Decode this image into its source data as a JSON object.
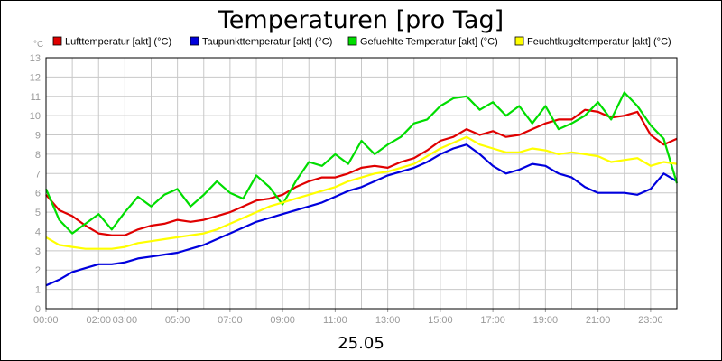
{
  "chart_data": {
    "type": "line",
    "title": "Temperaturen [pro Tag]",
    "ylabel": "°C",
    "xlabel": "25.05",
    "ylim": [
      0,
      13
    ],
    "xlim": [
      0,
      24
    ],
    "grid": true,
    "legend_position": "top",
    "y_ticks": [
      "0",
      "1",
      "2",
      "3",
      "4",
      "5",
      "6",
      "7",
      "8",
      "9",
      "10",
      "11",
      "12",
      "13"
    ],
    "x_ticks": [
      {
        "label": "00:00",
        "hour": 0
      },
      {
        "label": "02:00",
        "hour": 2
      },
      {
        "label": "03:00",
        "hour": 3
      },
      {
        "label": "05:00",
        "hour": 5
      },
      {
        "label": "07:00",
        "hour": 7
      },
      {
        "label": "09:00",
        "hour": 9
      },
      {
        "label": "11:00",
        "hour": 11
      },
      {
        "label": "13:00",
        "hour": 13
      },
      {
        "label": "15:00",
        "hour": 15
      },
      {
        "label": "17:00",
        "hour": 17
      },
      {
        "label": "19:00",
        "hour": 19
      },
      {
        "label": "21:00",
        "hour": 21
      },
      {
        "label": "23:00",
        "hour": 23
      }
    ],
    "series": [
      {
        "name": "Lufttemperatur [akt] (°C)",
        "color": "#e00000",
        "x": [
          0,
          0.5,
          1,
          1.5,
          2,
          2.5,
          3,
          3.5,
          4,
          4.5,
          5,
          5.5,
          6,
          6.5,
          7,
          7.5,
          8,
          8.5,
          9,
          9.5,
          10,
          10.5,
          11,
          11.5,
          12,
          12.5,
          13,
          13.5,
          14,
          14.5,
          15,
          15.5,
          16,
          16.5,
          17,
          17.5,
          18,
          18.5,
          19,
          19.5,
          20,
          20.5,
          21,
          21.5,
          22,
          22.5,
          23,
          23.5,
          24
        ],
        "values": [
          5.9,
          5.1,
          4.8,
          4.3,
          3.9,
          3.8,
          3.8,
          4.1,
          4.3,
          4.4,
          4.6,
          4.5,
          4.6,
          4.8,
          5.0,
          5.3,
          5.6,
          5.7,
          5.9,
          6.3,
          6.6,
          6.8,
          6.8,
          7.0,
          7.3,
          7.4,
          7.3,
          7.6,
          7.8,
          8.2,
          8.7,
          8.9,
          9.3,
          9.0,
          9.2,
          8.9,
          9.0,
          9.3,
          9.6,
          9.8,
          9.8,
          10.3,
          10.2,
          9.9,
          10.0,
          10.2,
          9.0,
          8.5,
          8.8
        ]
      },
      {
        "name": "Taupunkttemperatur [akt] (°C)",
        "color": "#0000dd",
        "x": [
          0,
          0.5,
          1,
          1.5,
          2,
          2.5,
          3,
          3.5,
          4,
          4.5,
          5,
          5.5,
          6,
          6.5,
          7,
          7.5,
          8,
          8.5,
          9,
          9.5,
          10,
          10.5,
          11,
          11.5,
          12,
          12.5,
          13,
          13.5,
          14,
          14.5,
          15,
          15.5,
          16,
          16.5,
          17,
          17.5,
          18,
          18.5,
          19,
          19.5,
          20,
          20.5,
          21,
          21.5,
          22,
          22.5,
          23,
          23.5,
          24
        ],
        "values": [
          1.2,
          1.5,
          1.9,
          2.1,
          2.3,
          2.3,
          2.4,
          2.6,
          2.7,
          2.8,
          2.9,
          3.1,
          3.3,
          3.6,
          3.9,
          4.2,
          4.5,
          4.7,
          4.9,
          5.1,
          5.3,
          5.5,
          5.8,
          6.1,
          6.3,
          6.6,
          6.9,
          7.1,
          7.3,
          7.6,
          8.0,
          8.3,
          8.5,
          8.0,
          7.4,
          7.0,
          7.2,
          7.5,
          7.4,
          7.0,
          6.8,
          6.3,
          6.0,
          6.0,
          6.0,
          5.9,
          6.2,
          7.0,
          6.6
        ]
      },
      {
        "name": "Gefuehlte Temperatur [akt] (°C)",
        "color": "#00dd00",
        "x": [
          0,
          0.5,
          1,
          1.5,
          2,
          2.5,
          3,
          3.5,
          4,
          4.5,
          5,
          5.5,
          6,
          6.5,
          7,
          7.5,
          8,
          8.5,
          9,
          9.5,
          10,
          10.5,
          11,
          11.5,
          12,
          12.5,
          13,
          13.5,
          14,
          14.5,
          15,
          15.5,
          16,
          16.5,
          17,
          17.5,
          18,
          18.5,
          19,
          19.5,
          20,
          20.5,
          21,
          21.5,
          22,
          22.5,
          23,
          23.5,
          24
        ],
        "values": [
          6.2,
          4.6,
          3.9,
          4.4,
          4.9,
          4.1,
          5.0,
          5.8,
          5.3,
          5.9,
          6.2,
          5.3,
          5.9,
          6.6,
          6.0,
          5.7,
          6.9,
          6.3,
          5.4,
          6.6,
          7.6,
          7.4,
          8.0,
          7.5,
          8.7,
          8.0,
          8.5,
          8.9,
          9.6,
          9.8,
          10.5,
          10.9,
          11.0,
          10.3,
          10.7,
          10.0,
          10.5,
          9.6,
          10.5,
          9.3,
          9.6,
          10.0,
          10.7,
          9.8,
          11.2,
          10.5,
          9.5,
          8.8,
          6.5
        ]
      },
      {
        "name": "Feuchtkugeltemperatur [akt] (°C)",
        "color": "#ffff00",
        "x": [
          0,
          0.5,
          1,
          1.5,
          2,
          2.5,
          3,
          3.5,
          4,
          4.5,
          5,
          5.5,
          6,
          6.5,
          7,
          7.5,
          8,
          8.5,
          9,
          9.5,
          10,
          10.5,
          11,
          11.5,
          12,
          12.5,
          13,
          13.5,
          14,
          14.5,
          15,
          15.5,
          16,
          16.5,
          17,
          17.5,
          18,
          18.5,
          19,
          19.5,
          20,
          20.5,
          21,
          21.5,
          22,
          22.5,
          23,
          23.5,
          24
        ],
        "values": [
          3.7,
          3.3,
          3.2,
          3.1,
          3.1,
          3.1,
          3.2,
          3.4,
          3.5,
          3.6,
          3.7,
          3.8,
          3.9,
          4.1,
          4.4,
          4.7,
          5.0,
          5.3,
          5.5,
          5.7,
          5.9,
          6.1,
          6.3,
          6.6,
          6.8,
          7.0,
          7.1,
          7.3,
          7.5,
          7.9,
          8.3,
          8.6,
          8.9,
          8.5,
          8.3,
          8.1,
          8.1,
          8.3,
          8.2,
          8.0,
          8.1,
          8.0,
          7.9,
          7.6,
          7.7,
          7.8,
          7.4,
          7.6,
          7.5
        ]
      }
    ]
  }
}
